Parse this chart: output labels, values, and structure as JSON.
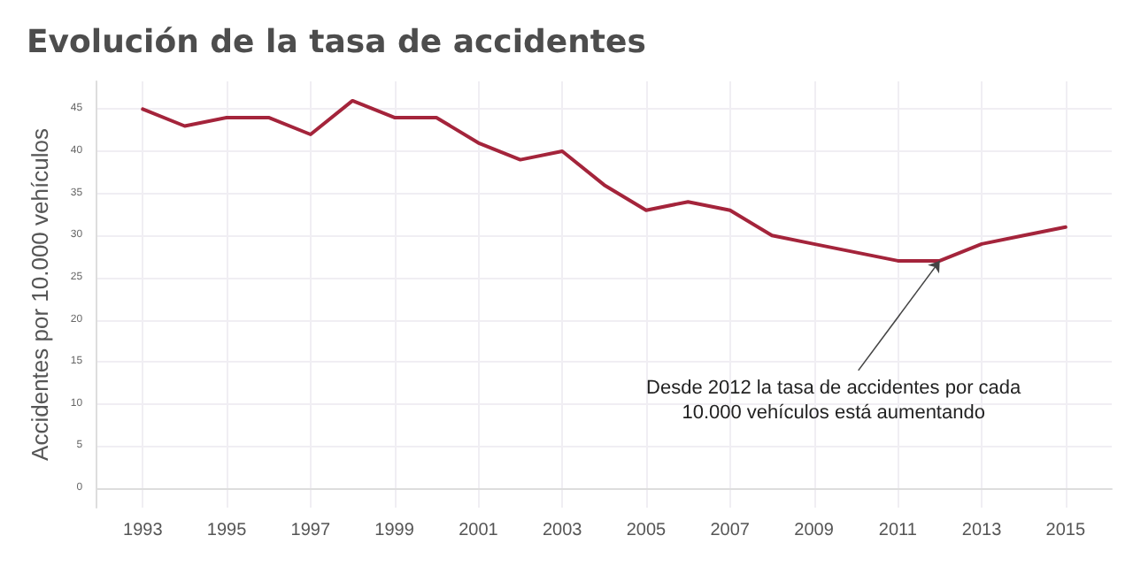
{
  "chart_data": {
    "type": "line",
    "title": "Evolución de la tasa de accidentes",
    "ylabel": "Accidentes por 10.000 vehículos",
    "x": [
      1993,
      1994,
      1995,
      1996,
      1997,
      1998,
      1999,
      2000,
      2001,
      2002,
      2003,
      2004,
      2005,
      2006,
      2007,
      2008,
      2009,
      2010,
      2011,
      2012,
      2013,
      2014,
      2015
    ],
    "series": [
      {
        "color": "#a4243b",
        "values": [
          45,
          43,
          44,
          44,
          42,
          46,
          44,
          44,
          41,
          39,
          40,
          36,
          33,
          34,
          33,
          30,
          29,
          28,
          27,
          27,
          29,
          30,
          31
        ]
      }
    ],
    "xlim": [
      1991.9,
      2016.1
    ],
    "xticks": [
      1993,
      1995,
      1997,
      1999,
      2001,
      2003,
      2005,
      2007,
      2009,
      2011,
      2013,
      2015
    ],
    "ylim": [
      -2.3,
      48.3
    ],
    "yticks": [
      0,
      5,
      10,
      15,
      20,
      25,
      30,
      35,
      40,
      45
    ],
    "grid": true,
    "marker": "none",
    "line_style": "solid",
    "annotations": [
      {
        "text": "Desde 2012 la tasa de accidentes por cada\n10.000 vehículos está aumentando",
        "x": 2012,
        "y": 27
      }
    ]
  }
}
